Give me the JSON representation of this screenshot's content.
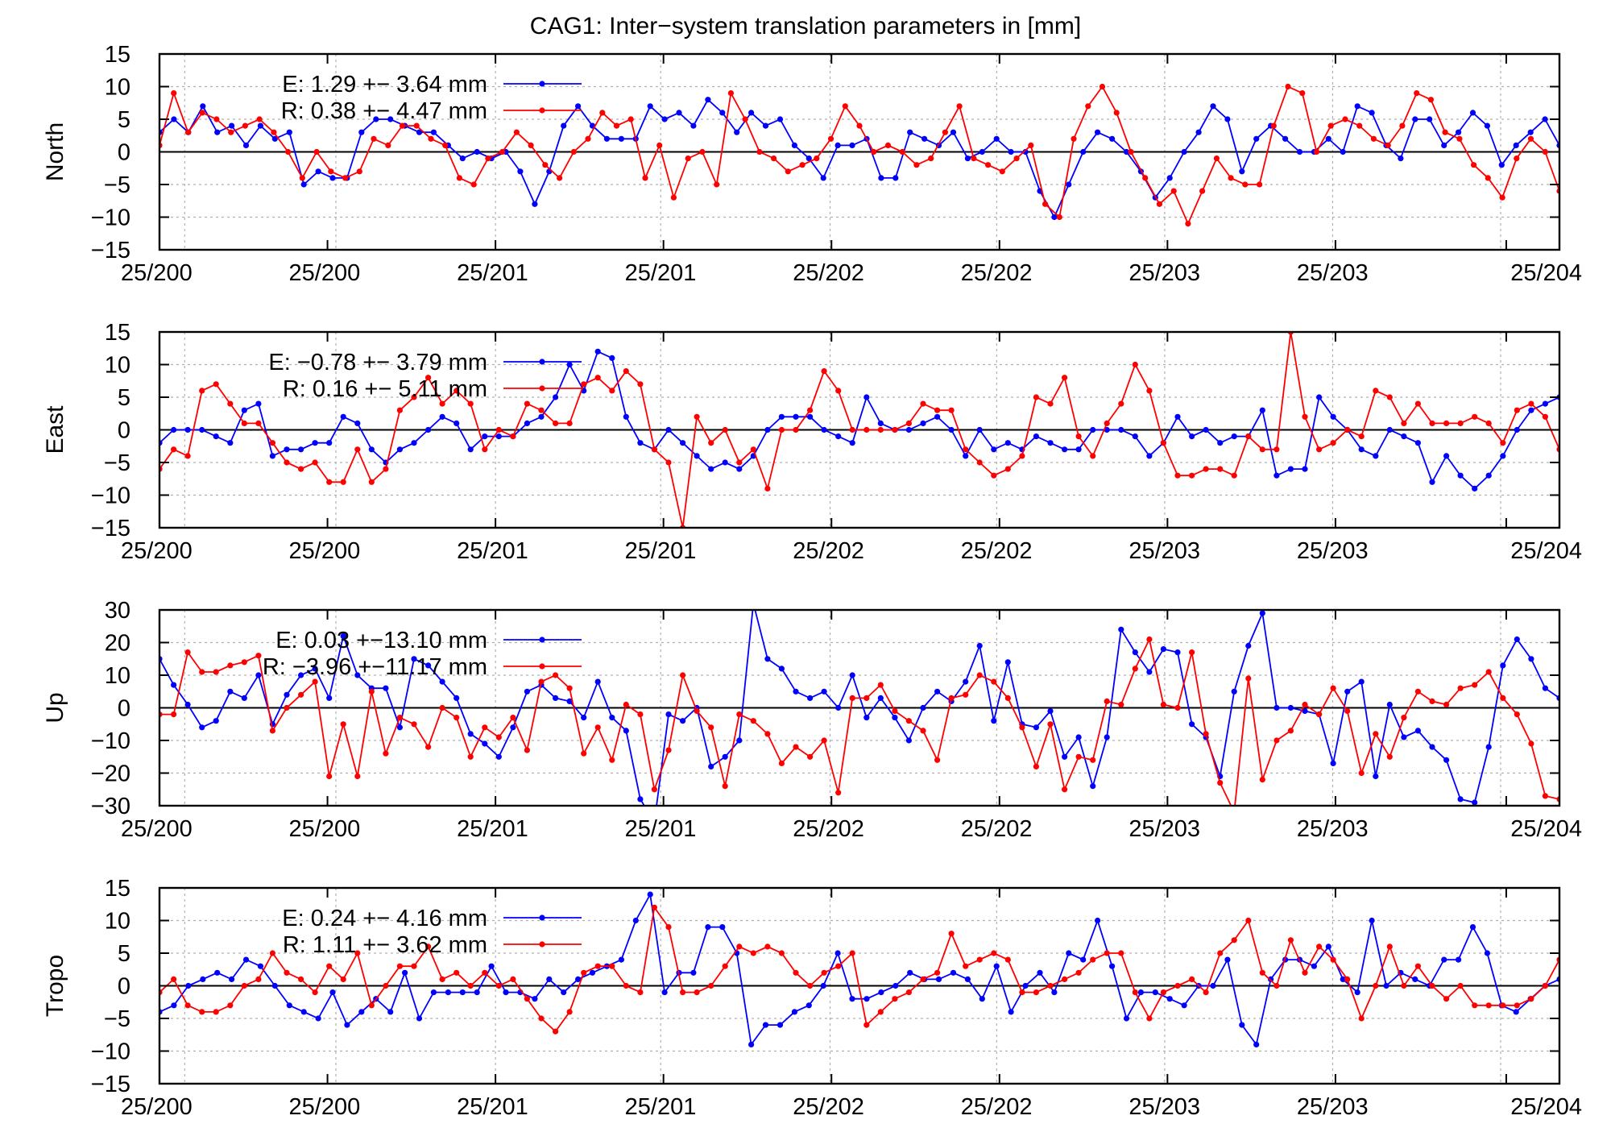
{
  "figure": {
    "title": "CAG1: Inter−system translation parameters in [mm]",
    "series_colors": {
      "E": "#0000ff",
      "R": "#ff0000"
    }
  },
  "chart_data": [
    {
      "type": "line",
      "ylabel": "North",
      "ylim": [
        -15,
        15
      ],
      "yticks": [
        15,
        10,
        5,
        0,
        -5,
        -10,
        -15
      ],
      "xticklabels": [
        "25/200",
        "25/200",
        "25/201",
        "25/201",
        "25/202",
        "25/202",
        "25/203",
        "25/203",
        "25/204"
      ],
      "grid": true,
      "legend_position": "top-left",
      "series": [
        {
          "name": "E",
          "legend": "E:   1.29 +− 3.64 mm",
          "color": "#0000ff",
          "values": [
            3,
            5,
            3,
            7,
            3,
            4,
            1,
            4,
            2,
            3,
            -5,
            -3,
            -4,
            -4,
            3,
            5,
            5,
            4,
            3,
            3,
            1,
            -1,
            0,
            -1,
            0,
            -3,
            -8,
            -3,
            4,
            7,
            4,
            2,
            2,
            2,
            7,
            5,
            6,
            4,
            8,
            6,
            3,
            6,
            4,
            5,
            1,
            -1,
            -4,
            1,
            1,
            2,
            -4,
            -4,
            3,
            2,
            1,
            3,
            -1,
            0,
            2,
            0,
            0,
            -6,
            -10,
            -5,
            0,
            3,
            2,
            0,
            -3,
            -7,
            -4,
            0,
            3,
            7,
            5,
            -3,
            2,
            4,
            2,
            0,
            0,
            2,
            0,
            7,
            6,
            1,
            -1,
            5,
            5,
            1,
            3,
            6,
            4,
            -2,
            1,
            3,
            5,
            1
          ]
        },
        {
          "name": "R",
          "legend": "R:   0.38 +− 4.47 mm",
          "color": "#ff0000",
          "values": [
            1,
            9,
            3,
            6,
            5,
            3,
            4,
            5,
            3,
            0,
            -4,
            0,
            -3,
            -4,
            -3,
            2,
            1,
            4,
            4,
            2,
            1,
            -4,
            -5,
            -1,
            0,
            3,
            1,
            -2,
            -4,
            0,
            2,
            6,
            4,
            5,
            -4,
            1,
            -7,
            -1,
            0,
            -5,
            9,
            5,
            0,
            -1,
            -3,
            -2,
            -1,
            2,
            7,
            4,
            0,
            1,
            0,
            -2,
            -1,
            3,
            7,
            -1,
            -2,
            -3,
            -1,
            1,
            -8,
            -10,
            2,
            7,
            10,
            6,
            0,
            -4,
            -8,
            -6,
            -11,
            -6,
            -1,
            -4,
            -5,
            -5,
            4,
            10,
            9,
            0,
            4,
            5,
            4,
            2,
            1,
            4,
            9,
            8,
            3,
            2,
            -2,
            -4,
            -7,
            -1,
            2,
            0,
            -6
          ]
        }
      ]
    },
    {
      "type": "line",
      "ylabel": "East",
      "ylim": [
        -15,
        15
      ],
      "yticks": [
        15,
        10,
        5,
        0,
        -5,
        -10,
        -15
      ],
      "xticklabels": [
        "25/200",
        "25/200",
        "25/201",
        "25/201",
        "25/202",
        "25/202",
        "25/203",
        "25/203",
        "25/204"
      ],
      "grid": true,
      "legend_position": "top-left",
      "series": [
        {
          "name": "E",
          "legend": "E:  −0.78 +− 3.79 mm",
          "color": "#0000ff",
          "values": [
            -2,
            0,
            0,
            0,
            -1,
            -2,
            3,
            4,
            -4,
            -3,
            -3,
            -2,
            -2,
            2,
            1,
            -3,
            -5,
            -3,
            -2,
            0,
            2,
            1,
            -3,
            -1,
            -1,
            -1,
            1,
            2,
            5,
            10,
            6,
            12,
            11,
            2,
            -2,
            -3,
            0,
            -2,
            -4,
            -6,
            -5,
            -6,
            -4,
            0,
            2,
            2,
            2,
            0,
            -1,
            -2,
            5,
            1,
            0,
            0,
            1,
            2,
            0,
            -4,
            0,
            -3,
            -2,
            -3,
            -1,
            -2,
            -3,
            -3,
            0,
            0,
            0,
            -1,
            -4,
            -2,
            2,
            -1,
            0,
            -2,
            -1,
            -1,
            3,
            -7,
            -6,
            -6,
            5,
            2,
            0,
            -3,
            -4,
            0,
            -1,
            -2,
            -8,
            -4,
            -7,
            -9,
            -7,
            -4,
            0,
            3,
            4,
            5
          ]
        },
        {
          "name": "R",
          "legend": "R:   0.16 +− 5.11 mm",
          "color": "#ff0000",
          "values": [
            -6,
            -3,
            -4,
            6,
            7,
            4,
            1,
            1,
            -2,
            -5,
            -6,
            -5,
            -8,
            -8,
            -3,
            -8,
            -6,
            3,
            5,
            8,
            4,
            6,
            4,
            -3,
            0,
            -1,
            4,
            3,
            1,
            1,
            7,
            8,
            6,
            9,
            7,
            -3,
            -5,
            -15,
            2,
            -2,
            0,
            -5,
            -3,
            -9,
            0,
            0,
            3,
            9,
            6,
            0,
            0,
            0,
            0,
            1,
            4,
            3,
            3,
            -3,
            -5,
            -7,
            -6,
            -4,
            5,
            4,
            8,
            -1,
            -4,
            1,
            4,
            10,
            6,
            -2,
            -7,
            -7,
            -6,
            -6,
            -7,
            -1,
            -3,
            -3,
            15,
            2,
            -3,
            -2,
            0,
            -1,
            6,
            5,
            1,
            4,
            1,
            1,
            1,
            2,
            1,
            -2,
            3,
            4,
            2,
            -3
          ]
        }
      ]
    },
    {
      "type": "line",
      "ylabel": "Up",
      "ylim": [
        -30,
        30
      ],
      "yticks": [
        30,
        20,
        10,
        0,
        -10,
        -20,
        -30
      ],
      "xticklabels": [
        "25/200",
        "25/200",
        "25/201",
        "25/201",
        "25/202",
        "25/202",
        "25/203",
        "25/203",
        "25/204"
      ],
      "grid": true,
      "legend_position": "top-left",
      "series": [
        {
          "name": "E",
          "legend": "E:   0.03 +−13.10 mm",
          "color": "#0000ff",
          "values": [
            15,
            7,
            1,
            -6,
            -4,
            5,
            3,
            10,
            -5,
            4,
            10,
            12,
            3,
            22,
            10,
            6,
            6,
            -6,
            15,
            13,
            8,
            3,
            -8,
            -11,
            -15,
            -6,
            5,
            7,
            3,
            2,
            -3,
            8,
            -3,
            -7,
            -28,
            -35,
            -2,
            -4,
            0,
            -18,
            -15,
            -10,
            32,
            15,
            12,
            5,
            3,
            5,
            0,
            10,
            -3,
            3,
            -3,
            -10,
            0,
            5,
            2,
            8,
            19,
            -4,
            14,
            -5,
            -6,
            -1,
            -15,
            -9,
            -24,
            -9,
            24,
            17,
            11,
            18,
            17,
            -5,
            -9,
            -21,
            5,
            19,
            29,
            0,
            0,
            -1,
            -2,
            -17,
            5,
            8,
            -21,
            1,
            -9,
            -7,
            -12,
            -16,
            -28,
            -29,
            -12,
            13,
            21,
            15,
            6,
            3
          ]
        },
        {
          "name": "R",
          "legend": "R:  −3.96 +−11.17 mm",
          "color": "#ff0000",
          "values": [
            -2,
            -2,
            17,
            11,
            11,
            13,
            14,
            16,
            -7,
            0,
            4,
            8,
            -21,
            -5,
            -21,
            5,
            -14,
            -3,
            -5,
            -12,
            0,
            -3,
            -15,
            -6,
            -9,
            -3,
            -13,
            8,
            10,
            6,
            -14,
            -6,
            -16,
            1,
            -2,
            -25,
            -13,
            10,
            -1,
            -6,
            -24,
            -2,
            -4,
            -8,
            -17,
            -12,
            -15,
            -10,
            -26,
            3,
            3,
            7,
            -1,
            -4,
            -7,
            -16,
            3,
            4,
            10,
            8,
            3,
            -6,
            -18,
            -5,
            -25,
            -15,
            -16,
            2,
            1,
            12,
            21,
            1,
            0,
            17,
            -8,
            -23,
            -32,
            9,
            -22,
            -10,
            -7,
            1,
            -2,
            6,
            -1,
            -20,
            -8,
            -15,
            -3,
            5,
            2,
            1,
            6,
            7,
            11,
            3,
            -2,
            -11,
            -27,
            -28
          ]
        }
      ]
    },
    {
      "type": "line",
      "ylabel": "Tropo",
      "ylim": [
        -15,
        15
      ],
      "yticks": [
        15,
        10,
        5,
        0,
        -5,
        -10,
        -15
      ],
      "xticklabels": [
        "25/200",
        "25/200",
        "25/201",
        "25/201",
        "25/202",
        "25/202",
        "25/203",
        "25/203",
        "25/204"
      ],
      "grid": true,
      "legend_position": "top-left",
      "series": [
        {
          "name": "E",
          "legend": "E:   0.24 +− 4.16 mm",
          "color": "#0000ff",
          "values": [
            -4,
            -3,
            0,
            1,
            2,
            1,
            4,
            3,
            0,
            -3,
            -4,
            -5,
            -1,
            -6,
            -4,
            -2,
            -4,
            2,
            -5,
            -1,
            -1,
            -1,
            -1,
            3,
            -1,
            -1,
            -2,
            1,
            -1,
            1,
            2,
            3,
            4,
            10,
            14,
            -1,
            2,
            2,
            9,
            9,
            5,
            -9,
            -6,
            -6,
            -4,
            -3,
            0,
            5,
            -2,
            -2,
            -1,
            0,
            2,
            1,
            1,
            2,
            1,
            -2,
            3,
            -4,
            0,
            2,
            -1,
            5,
            4,
            10,
            3,
            -5,
            -1,
            -1,
            -2,
            -3,
            0,
            0,
            4,
            -6,
            -9,
            1,
            4,
            4,
            3,
            6,
            1,
            -1,
            10,
            0,
            2,
            1,
            0,
            4,
            4,
            9,
            5,
            -3,
            -4,
            -2,
            0,
            1
          ]
        },
        {
          "name": "R",
          "legend": "R:   1.11 +− 3.62 mm",
          "color": "#ff0000",
          "values": [
            -1,
            1,
            -3,
            -4,
            -4,
            -3,
            0,
            1,
            5,
            2,
            1,
            -1,
            3,
            1,
            5,
            -3,
            0,
            3,
            3,
            6,
            1,
            2,
            0,
            2,
            0,
            1,
            -2,
            -5,
            -7,
            -4,
            2,
            3,
            3,
            0,
            -1,
            12,
            9,
            -1,
            -1,
            0,
            3,
            6,
            5,
            6,
            5,
            2,
            0,
            2,
            3,
            5,
            -6,
            -4,
            -2,
            -1,
            1,
            2,
            8,
            3,
            4,
            5,
            4,
            -1,
            -1,
            0,
            1,
            2,
            4,
            5,
            5,
            -1,
            -5,
            -1,
            0,
            1,
            -1,
            5,
            7,
            10,
            2,
            0,
            7,
            2,
            6,
            4,
            1,
            -5,
            0,
            6,
            0,
            3,
            0,
            -2,
            0,
            -3,
            -3,
            -3,
            -3,
            -2,
            0,
            4
          ]
        }
      ]
    }
  ]
}
